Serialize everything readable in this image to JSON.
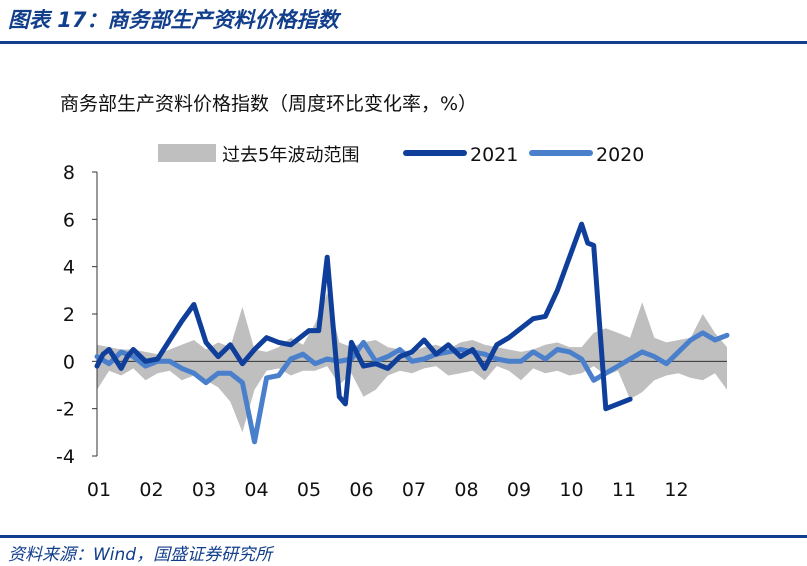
{
  "header": {
    "title": "图表 17：商务部生产资料价格指数"
  },
  "footer": {
    "source": "资料来源：Wind，国盛证券研究所"
  },
  "chart_data": {
    "type": "line",
    "title": "商务部生产资料价格指数（周度环比变化率，%）",
    "xlabel": "",
    "ylabel": "",
    "ylim": [
      -4,
      8
    ],
    "yticks": [
      -4,
      -2,
      0,
      2,
      4,
      6,
      8
    ],
    "categories": [
      "01",
      "02",
      "03",
      "04",
      "05",
      "06",
      "07",
      "08",
      "09",
      "10",
      "11",
      "12"
    ],
    "week_span": [
      0,
      52
    ],
    "grid": false,
    "legend": "top",
    "band": {
      "name": "过去5年波动范围",
      "color": "#bfbfbf",
      "x": [
        0,
        1,
        2,
        3,
        4,
        5,
        6,
        7,
        8,
        9,
        10,
        11,
        12,
        13,
        14,
        15,
        16,
        17,
        18,
        19,
        20,
        21,
        22,
        23,
        24,
        25,
        26,
        27,
        28,
        29,
        30,
        31,
        32,
        33,
        34,
        35,
        36,
        37,
        38,
        39,
        40,
        41,
        42,
        43,
        44,
        45,
        46,
        47,
        48,
        49,
        50,
        51,
        52
      ],
      "upper": [
        0.7,
        0.6,
        0.5,
        0.5,
        0.4,
        0.3,
        0.5,
        0.7,
        0.9,
        0.5,
        0.8,
        0.6,
        2.3,
        0.5,
        0.4,
        0.6,
        1.0,
        0.7,
        1.6,
        2.9,
        0.8,
        0.6,
        0.8,
        0.9,
        0.6,
        0.5,
        0.4,
        0.6,
        0.7,
        0.5,
        0.8,
        0.9,
        0.7,
        0.6,
        0.5,
        0.4,
        0.5,
        0.7,
        0.8,
        0.6,
        0.6,
        1.2,
        1.4,
        1.2,
        1.0,
        2.5,
        1.0,
        0.8,
        0.9,
        1.0,
        2.0,
        1.2,
        0.6
      ],
      "lower": [
        -1.2,
        -0.4,
        -0.6,
        -0.3,
        -0.8,
        -0.5,
        -0.4,
        -0.8,
        -0.6,
        -0.8,
        -1.1,
        -1.7,
        -3.0,
        -1.2,
        -0.4,
        -0.3,
        -0.6,
        -0.4,
        -0.4,
        -0.2,
        -1.0,
        -0.5,
        -1.5,
        -1.2,
        -0.6,
        -0.4,
        -0.5,
        -0.3,
        -0.2,
        -0.6,
        -0.5,
        -0.4,
        -0.8,
        -0.2,
        -0.4,
        -0.8,
        -0.3,
        -0.5,
        -0.4,
        -0.6,
        -0.5,
        -0.2,
        -0.6,
        -0.4,
        -1.6,
        -1.3,
        -0.8,
        -0.6,
        -0.5,
        -0.7,
        -0.8,
        -0.5,
        -1.2
      ]
    },
    "series": [
      {
        "name": "2021",
        "color": "#0f3f9a",
        "x": [
          0,
          0.5,
          1,
          1.5,
          2,
          2.5,
          3,
          4,
          5,
          6,
          7,
          8,
          9,
          10,
          11,
          12,
          13,
          14,
          15,
          16,
          17,
          17.5,
          18.3,
          19,
          19.5,
          20,
          20.5,
          21,
          22,
          23,
          24,
          25,
          26,
          27,
          28,
          29,
          30,
          31,
          32,
          33,
          34,
          35,
          36,
          37,
          38,
          39,
          40,
          40.5,
          41,
          42,
          43,
          44
        ],
        "values": [
          -0.2,
          0.3,
          0.5,
          0.1,
          -0.3,
          0.2,
          0.5,
          0.0,
          0.1,
          0.9,
          1.7,
          2.4,
          0.8,
          0.2,
          0.7,
          -0.1,
          0.5,
          1.0,
          0.8,
          0.7,
          1.1,
          1.3,
          1.3,
          4.4,
          1.4,
          -1.5,
          -1.8,
          0.8,
          -0.2,
          -0.1,
          -0.3,
          0.2,
          0.4,
          0.9,
          0.3,
          0.7,
          0.2,
          0.5,
          -0.3,
          0.7,
          1.0,
          1.4,
          1.8,
          1.9,
          3.0,
          4.4,
          5.8,
          5.0,
          4.9,
          -2.0,
          -1.8,
          -1.6
        ]
      },
      {
        "name": "2020",
        "color": "#4a7fcc",
        "x": [
          0,
          1,
          2,
          3,
          4,
          5,
          6,
          7,
          8,
          9,
          10,
          11,
          12,
          13,
          14,
          15,
          16,
          17,
          18,
          19,
          20,
          21,
          22,
          23,
          24,
          25,
          26,
          27,
          28,
          29,
          30,
          31,
          32,
          33,
          34,
          35,
          36,
          37,
          38,
          39,
          40,
          41,
          42,
          43,
          44,
          45,
          46,
          47,
          48,
          49,
          50,
          51,
          52
        ],
        "values": [
          0.2,
          -0.1,
          0.4,
          0.2,
          -0.2,
          0.0,
          0.0,
          -0.3,
          -0.5,
          -0.9,
          -0.5,
          -0.5,
          -0.9,
          -3.4,
          -0.7,
          -0.6,
          0.1,
          0.3,
          -0.1,
          0.1,
          0.0,
          0.1,
          0.8,
          0.0,
          0.2,
          0.5,
          0.0,
          0.1,
          0.3,
          0.4,
          0.5,
          0.4,
          0.3,
          0.1,
          0.0,
          0.0,
          0.4,
          0.1,
          0.5,
          0.4,
          0.1,
          -0.8,
          -0.5,
          -0.2,
          0.1,
          0.4,
          0.2,
          -0.1,
          0.4,
          0.9,
          1.2,
          0.9,
          1.1
        ]
      }
    ]
  }
}
